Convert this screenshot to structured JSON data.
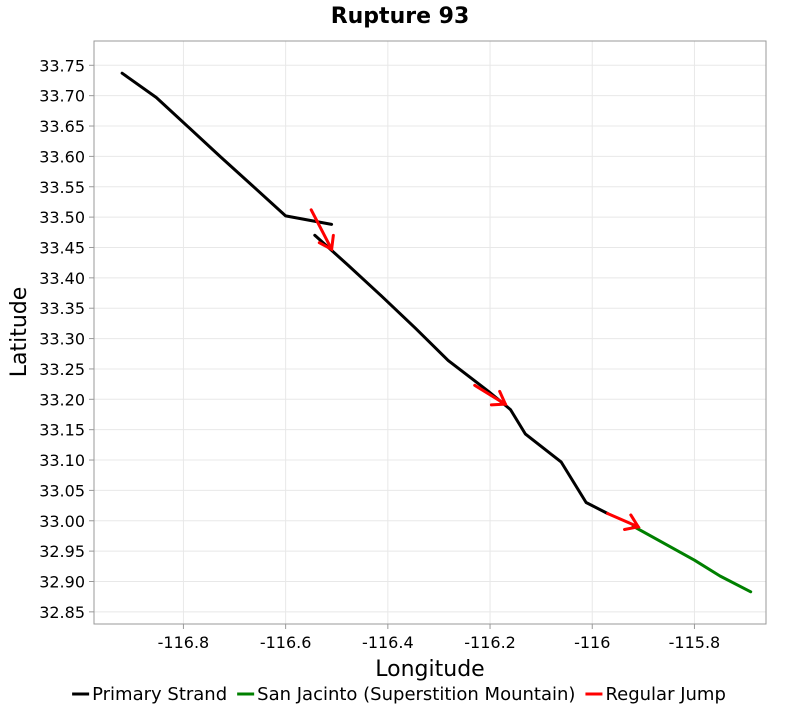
{
  "chart_data": {
    "type": "line",
    "title": "Rupture 93",
    "xlabel": "Longitude",
    "ylabel": "Latitude",
    "xlim": [
      -116.975,
      -115.66
    ],
    "ylim": [
      32.83,
      33.79
    ],
    "grid": true,
    "x_ticks": [
      -116.8,
      -116.6,
      -116.4,
      -116.2,
      -116.0,
      -115.8
    ],
    "x_tick_labels": [
      "-116.8",
      "-116.6",
      "-116.4",
      "-116.2",
      "-116",
      "-115.8"
    ],
    "y_ticks": [
      32.85,
      32.9,
      32.95,
      33.0,
      33.05,
      33.1,
      33.15,
      33.2,
      33.25,
      33.3,
      33.35,
      33.4,
      33.45,
      33.5,
      33.55,
      33.6,
      33.65,
      33.7,
      33.75
    ],
    "y_tick_labels": [
      "32.85",
      "32.90",
      "32.95",
      "33.00",
      "33.05",
      "33.10",
      "33.15",
      "33.20",
      "33.25",
      "33.30",
      "33.35",
      "33.40",
      "33.45",
      "33.50",
      "33.55",
      "33.60",
      "33.65",
      "33.70",
      "33.75"
    ],
    "legend_position": "bottom",
    "series": [
      {
        "name": "Primary Strand",
        "color": "#000000",
        "segments": [
          [
            [
              -116.92,
              33.737
            ],
            [
              -116.853,
              33.697
            ],
            [
              -116.79,
              33.648
            ],
            [
              -116.727,
              33.599
            ],
            [
              -116.664,
              33.551
            ],
            [
              -116.6,
              33.502
            ],
            [
              -116.51,
              33.488
            ]
          ],
          [
            [
              -116.543,
              33.47
            ],
            [
              -116.478,
              33.421
            ],
            [
              -116.411,
              33.369
            ],
            [
              -116.346,
              33.317
            ],
            [
              -116.282,
              33.264
            ],
            [
              -116.203,
              33.213
            ],
            [
              -116.16,
              33.183
            ],
            [
              -116.131,
              33.143
            ],
            [
              -116.061,
              33.097
            ],
            [
              -116.012,
              33.03
            ],
            [
              -115.97,
              33.012
            ]
          ]
        ]
      },
      {
        "name": "San Jacinto (Superstition Mountain)",
        "color": "#008000",
        "segments": [
          [
            [
              -115.92,
              32.991
            ],
            [
              -115.86,
              32.963
            ],
            [
              -115.8,
              32.935
            ],
            [
              -115.75,
              32.909
            ],
            [
              -115.69,
              32.883
            ]
          ]
        ]
      },
      {
        "name": "Regular Jump",
        "color": "#ff0000",
        "arrows": [
          [
            [
              -116.55,
              33.512
            ],
            [
              -116.51,
              33.447
            ]
          ],
          [
            [
              -116.23,
              33.223
            ],
            [
              -116.17,
              33.192
            ]
          ],
          [
            [
              -115.97,
              33.012
            ],
            [
              -115.91,
              32.99
            ]
          ]
        ]
      }
    ]
  }
}
